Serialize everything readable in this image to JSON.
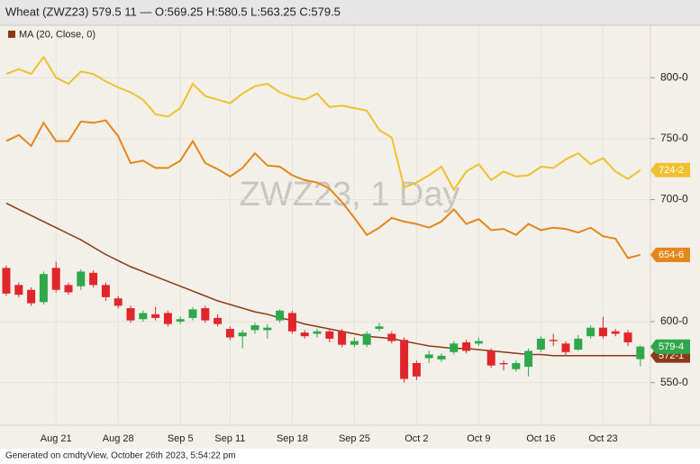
{
  "chart_data": {
    "type": "candlestick",
    "title": "Wheat (ZWZ23) 579.5 11 — O:569.25 H:580.5 L:563.25 C:579.5",
    "watermark": "ZWZ23, 1 Day",
    "footnote": "Generated on cmdtyView, October 26th 2023, 5:54:22 pm",
    "categories": [
      null,
      null,
      null,
      null,
      "Aug 21",
      null,
      null,
      null,
      null,
      "Aug 28",
      null,
      null,
      null,
      null,
      "Sep 5",
      null,
      null,
      null,
      "Sep 11",
      null,
      null,
      null,
      null,
      "Sep 18",
      null,
      null,
      null,
      null,
      "Sep 25",
      null,
      null,
      null,
      null,
      "Oct 2",
      null,
      null,
      null,
      null,
      "Oct 9",
      null,
      null,
      null,
      null,
      "Oct 16",
      null,
      null,
      null,
      null,
      "Oct 23",
      null,
      null,
      null
    ],
    "open": [
      644,
      630,
      626,
      616,
      644,
      630,
      629,
      640,
      630,
      619,
      611,
      602,
      606,
      607,
      600,
      603,
      611,
      603,
      594,
      588,
      593,
      593,
      601,
      607,
      591,
      590,
      592,
      592,
      581,
      581,
      594,
      590,
      585,
      566,
      570,
      569,
      575,
      583,
      582,
      576,
      566,
      561,
      563,
      577,
      585,
      582,
      577,
      588,
      595,
      592,
      591,
      569.25
    ],
    "high": [
      646,
      632,
      628,
      641,
      649,
      632,
      643,
      642,
      632,
      621,
      613,
      609,
      612,
      609,
      604,
      612,
      613,
      606,
      596,
      593,
      599,
      598,
      610,
      609,
      593,
      594,
      594,
      594,
      587,
      592,
      599,
      592,
      587,
      568,
      576,
      574,
      584,
      585,
      587,
      578,
      568,
      568,
      578,
      588,
      590,
      584,
      589,
      597,
      604,
      594,
      593,
      580.5
    ],
    "low": [
      621,
      620,
      613,
      614,
      624,
      622,
      626,
      628,
      617,
      611,
      599,
      600,
      601,
      596,
      598,
      601,
      599,
      596,
      585,
      578,
      590,
      586,
      599,
      590,
      586,
      587,
      583,
      579,
      579,
      579,
      592,
      582,
      550,
      552,
      566,
      567,
      573,
      574,
      580,
      562,
      560,
      559,
      555,
      575,
      580,
      572,
      576,
      586,
      586,
      588,
      580,
      563.25
    ],
    "close": [
      623,
      622,
      615,
      639,
      626,
      624,
      641,
      630,
      620,
      613,
      601,
      607,
      603,
      598,
      602,
      610,
      601,
      598,
      587,
      591,
      597,
      595,
      609,
      592,
      588,
      592,
      586,
      581,
      584,
      590,
      596,
      584,
      553,
      555,
      573,
      572,
      582,
      576,
      584,
      564,
      565,
      566,
      576,
      586,
      584,
      575,
      586,
      595,
      588,
      590,
      583,
      579.5
    ],
    "up_color": "#2ea84a",
    "down_color": "#e0262b",
    "series": [
      {
        "color": "#efc12f",
        "values": [
          803,
          807,
          803,
          817,
          800,
          795,
          805,
          803,
          797,
          792,
          788,
          782,
          770,
          768,
          775,
          795,
          785,
          782,
          779,
          787,
          793,
          795,
          788,
          784,
          782,
          787,
          776,
          777,
          775,
          773,
          757,
          751,
          710,
          714,
          720,
          727,
          708,
          723,
          729,
          716,
          723,
          719,
          720,
          727,
          726,
          733,
          738,
          729,
          734,
          723,
          717,
          724.25
        ]
      },
      {
        "color": "#e5861c",
        "values": [
          748,
          753,
          744,
          763,
          748,
          748,
          764,
          763,
          765,
          752,
          730,
          732,
          726,
          726,
          732,
          748,
          730,
          725,
          719,
          726,
          738,
          728,
          727,
          720,
          716,
          714,
          709,
          698,
          685,
          671,
          677,
          685,
          682,
          680,
          677,
          682,
          692,
          680,
          684,
          675,
          676,
          671,
          680,
          675,
          677,
          676,
          673,
          677,
          670,
          668,
          652,
          654.75
        ]
      },
      {
        "name": "MA (20, Close, 0)",
        "color": "#8b3a17",
        "values": [
          697,
          692,
          687,
          682,
          677,
          672,
          667,
          661,
          655,
          650,
          645,
          641,
          637,
          633,
          629,
          625,
          621,
          617,
          614,
          611,
          608,
          606,
          603,
          601,
          598,
          596,
          594,
          592,
          590,
          588,
          587,
          586,
          584,
          582,
          580,
          579,
          578,
          578,
          577,
          576,
          575,
          574,
          573,
          573,
          572,
          572,
          572,
          572,
          572,
          572,
          572,
          572.125
        ]
      }
    ],
    "price_tags": [
      {
        "value": 724.25,
        "label": "724-2",
        "color": "#efc12f"
      },
      {
        "value": 654.75,
        "label": "654-6",
        "color": "#e5861c"
      },
      {
        "value": 572.125,
        "label": "572-1",
        "color": "#8b3a17"
      },
      {
        "value": 579.5,
        "label": "579-4",
        "color": "#2ea84a"
      }
    ],
    "ylim": [
      515,
      843
    ],
    "yticks": [
      {
        "value": 550,
        "label": "550-0"
      },
      {
        "value": 600,
        "label": "600-0"
      },
      {
        "value": 700,
        "label": "700-0"
      },
      {
        "value": 750,
        "label": "750-0"
      },
      {
        "value": 800,
        "label": "800-0"
      }
    ],
    "grid": true
  }
}
